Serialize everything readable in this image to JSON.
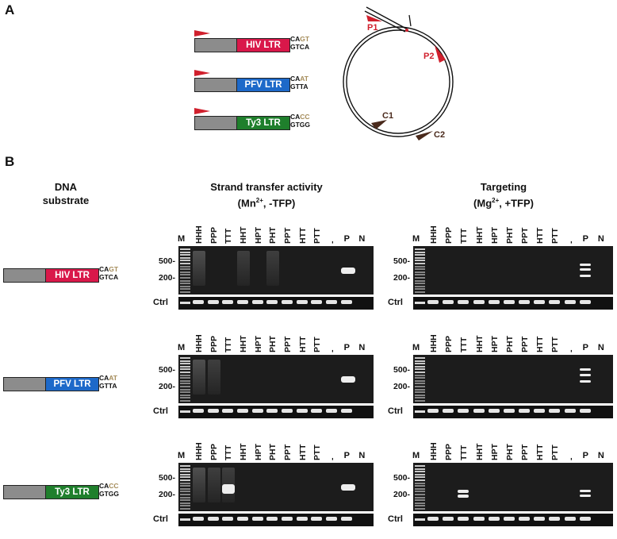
{
  "panel_a": {
    "letter": "A",
    "constructs": [
      {
        "ltr_label": "HIV LTR",
        "color": "#d9184a",
        "top_prefix": "CA",
        "top_hl": "GT",
        "bottom": "GTCA"
      },
      {
        "ltr_label": "PFV LTR",
        "color": "#1d69c9",
        "top_prefix": "CA",
        "top_hl": "AT",
        "bottom": "GTTA"
      },
      {
        "ltr_label": "Ty3 LTR",
        "color": "#1f7f2c",
        "top_prefix": "CA",
        "top_hl": "CC",
        "bottom": "GTGG"
      }
    ],
    "plasmid": {
      "primer_labels": [
        "P1",
        "P2",
        "C1",
        "C2"
      ],
      "primer_color": "#d0202d",
      "control_color": "#4a2a1c"
    }
  },
  "panel_b": {
    "letter": "B",
    "substrate_header": [
      "DNA",
      "substrate"
    ],
    "strand_transfer_header": [
      "Strand transfer activity",
      "(Mn",
      "2+",
      ", -TFP)"
    ],
    "targeting_header": [
      "Targeting",
      "(Mg",
      "2+",
      ", +TFP)"
    ],
    "marker_label": "M",
    "lanes": [
      "HHH",
      "PPP",
      "TTT",
      "HHT",
      "HPT",
      "PHT",
      "PPT",
      "HTT",
      "PTT",
      "-"
    ],
    "p_label": "P",
    "n_label": "N",
    "size_labels": [
      "500-",
      "200-"
    ],
    "ctrl_label": "Ctrl",
    "rows": [
      {
        "ltr_label": "HIV LTR",
        "color": "#d9184a",
        "top_prefix": "CA",
        "top_hl": "GT",
        "bottom": "GTCA"
      },
      {
        "ltr_label": "PFV LTR",
        "color": "#1d69c9",
        "top_prefix": "CA",
        "top_hl": "AT",
        "bottom": "GTTA"
      },
      {
        "ltr_label": "Ty3 LTR",
        "color": "#1f7f2c",
        "top_prefix": "CA",
        "top_hl": "CC",
        "bottom": "GTGG"
      }
    ]
  }
}
